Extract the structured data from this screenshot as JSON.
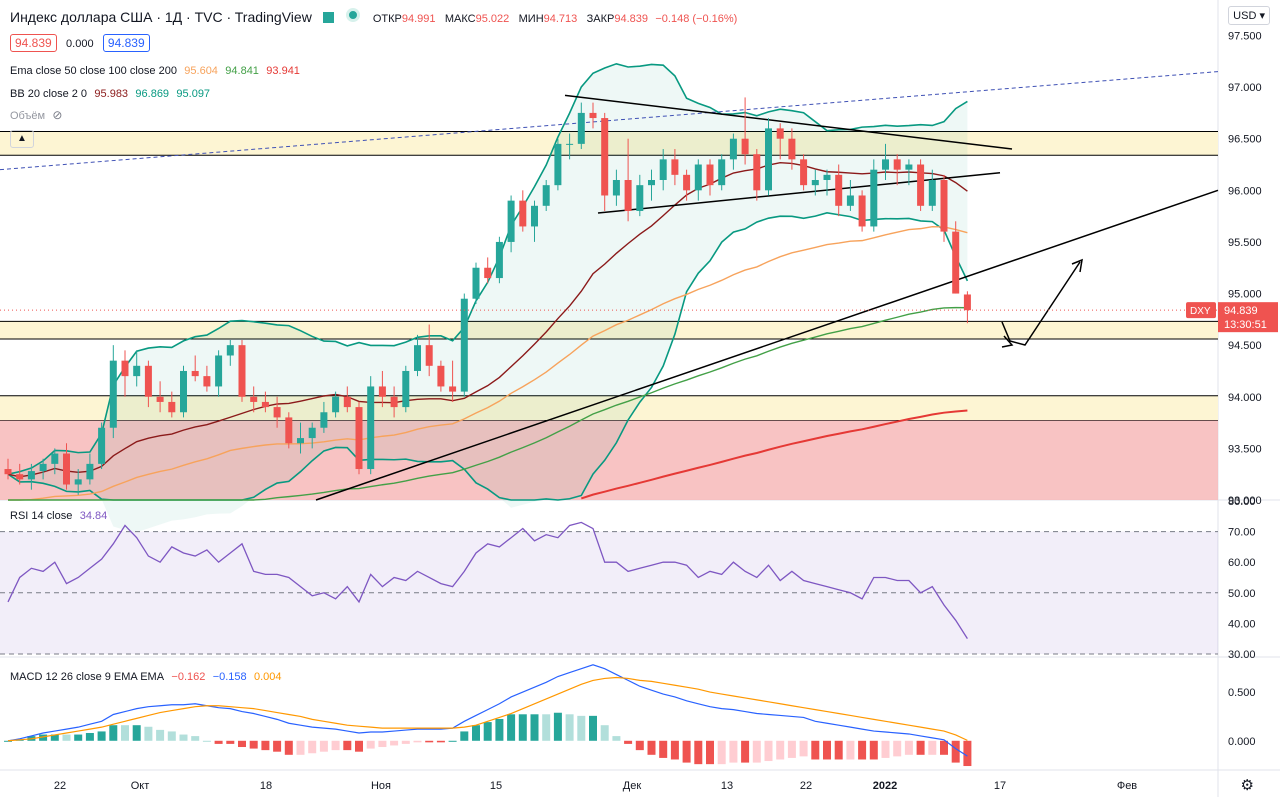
{
  "header": {
    "title": "Индекс доллара США · 1Д · TVC · TradingView",
    "otkr_label": "ОТКР",
    "otkr": "94.991",
    "maks_label": "МАКС",
    "maks": "95.022",
    "min_label": "МИН",
    "min": "94.713",
    "zakr_label": "ЗАКР",
    "zakr": "94.839",
    "change": "−0.148 (−0.16%)"
  },
  "quote": {
    "bid": "94.839",
    "spread": "0.000",
    "ask": "94.839"
  },
  "indicators": {
    "ema_label": "Ema close 50 close 100 close 200",
    "ema50": "95.604",
    "ema100": "94.841",
    "ema200": "93.941",
    "bb_label": "BB 20 close 2 0",
    "bb_basis": "95.983",
    "bb_upper": "96.869",
    "bb_lower": "95.097",
    "volume_label": "Объём",
    "rsi_label": "RSI 14 close",
    "rsi_value": "34.84",
    "macd_label": "MACD 12 26 close 9 EMA EMA",
    "macd_hist": "−0.162",
    "macd_line": "−0.158",
    "macd_signal": "0.004"
  },
  "scale": {
    "currency": "USD"
  },
  "price_tag": {
    "symbol": "DXY",
    "price": "94.839",
    "countdown": "13:30:51"
  },
  "colors": {
    "up": "#26a69a",
    "down": "#ef5350",
    "ema50": "#f7a35c",
    "ema100": "#43a047",
    "ema200": "#e53935",
    "bb_basis": "#8b1a1a",
    "bb_band": "#089981",
    "rsi": "#7e57c2",
    "macd": "#2962ff",
    "signal": "#ff9800",
    "zone_yellow": "#fdf5d3",
    "zone_red": "#f7b8b8"
  },
  "chart_data": {
    "type": "candlestick",
    "x_labels": [
      "22",
      "Окт",
      "18",
      "Ноя",
      "15",
      "Дек",
      "13",
      "22",
      "2022",
      "17",
      "Фев"
    ],
    "main_pane": {
      "y_ticks": [
        "97.500",
        "97.000",
        "96.500",
        "96.000",
        "95.500",
        "95.000",
        "94.500",
        "94.000",
        "93.500",
        "93.000"
      ],
      "ylim": [
        93.0,
        97.65
      ],
      "ohlc": [
        [
          93.3,
          93.4,
          93.2,
          93.25
        ],
        [
          93.25,
          93.35,
          93.15,
          93.2
        ],
        [
          93.2,
          93.35,
          93.1,
          93.28
        ],
        [
          93.28,
          93.4,
          93.2,
          93.35
        ],
        [
          93.35,
          93.5,
          93.25,
          93.45
        ],
        [
          93.45,
          93.55,
          93.1,
          93.15
        ],
        [
          93.15,
          93.3,
          93.05,
          93.2
        ],
        [
          93.2,
          93.45,
          93.15,
          93.35
        ],
        [
          93.35,
          93.75,
          93.3,
          93.7
        ],
        [
          93.7,
          94.5,
          93.6,
          94.35
        ],
        [
          94.35,
          94.45,
          94.0,
          94.2
        ],
        [
          94.2,
          94.45,
          94.1,
          94.3
        ],
        [
          94.3,
          94.35,
          93.9,
          94.0
        ],
        [
          94.0,
          94.15,
          93.85,
          93.95
        ],
        [
          93.95,
          94.05,
          93.8,
          93.85
        ],
        [
          93.85,
          94.3,
          93.8,
          94.25
        ],
        [
          94.25,
          94.4,
          94.15,
          94.2
        ],
        [
          94.2,
          94.3,
          94.05,
          94.1
        ],
        [
          94.1,
          94.45,
          94.0,
          94.4
        ],
        [
          94.4,
          94.55,
          94.3,
          94.5
        ],
        [
          94.5,
          94.55,
          93.95,
          94.0
        ],
        [
          94.0,
          94.1,
          93.85,
          93.95
        ],
        [
          93.95,
          94.05,
          93.85,
          93.9
        ],
        [
          93.9,
          94.0,
          93.7,
          93.8
        ],
        [
          93.8,
          93.85,
          93.5,
          93.55
        ],
        [
          93.55,
          93.75,
          93.45,
          93.6
        ],
        [
          93.6,
          93.75,
          93.5,
          93.7
        ],
        [
          93.7,
          93.95,
          93.65,
          93.85
        ],
        [
          93.85,
          94.05,
          93.8,
          94.0
        ],
        [
          94.0,
          94.1,
          93.85,
          93.9
        ],
        [
          93.9,
          93.95,
          93.25,
          93.3
        ],
        [
          93.3,
          94.2,
          93.25,
          94.1
        ],
        [
          94.1,
          94.25,
          93.9,
          94.0
        ],
        [
          94.0,
          94.1,
          93.8,
          93.9
        ],
        [
          93.9,
          94.3,
          93.85,
          94.25
        ],
        [
          94.25,
          94.6,
          94.2,
          94.5
        ],
        [
          94.5,
          94.7,
          94.2,
          94.3
        ],
        [
          94.3,
          94.35,
          94.05,
          94.1
        ],
        [
          94.1,
          94.35,
          93.95,
          94.05
        ],
        [
          94.05,
          95.0,
          94.0,
          94.95
        ],
        [
          94.95,
          95.3,
          94.9,
          95.25
        ],
        [
          95.25,
          95.35,
          95.1,
          95.15
        ],
        [
          95.15,
          95.55,
          95.1,
          95.5
        ],
        [
          95.5,
          95.95,
          95.4,
          95.9
        ],
        [
          95.9,
          96.0,
          95.6,
          95.65
        ],
        [
          95.65,
          95.9,
          95.5,
          95.85
        ],
        [
          95.85,
          96.1,
          95.8,
          96.05
        ],
        [
          96.05,
          96.5,
          96.0,
          96.45
        ],
        [
          96.45,
          96.55,
          96.3,
          96.45
        ],
        [
          96.45,
          96.85,
          96.4,
          96.75
        ],
        [
          96.75,
          96.85,
          96.6,
          96.7
        ],
        [
          96.7,
          96.75,
          95.8,
          95.95
        ],
        [
          95.95,
          96.2,
          95.85,
          96.1
        ],
        [
          96.1,
          96.5,
          95.7,
          95.8
        ],
        [
          95.8,
          96.15,
          95.75,
          96.05
        ],
        [
          96.05,
          96.2,
          95.9,
          96.1
        ],
        [
          96.1,
          96.4,
          96.0,
          96.3
        ],
        [
          96.3,
          96.4,
          96.05,
          96.15
        ],
        [
          96.15,
          96.2,
          95.9,
          96.0
        ],
        [
          96.0,
          96.3,
          95.9,
          96.25
        ],
        [
          96.25,
          96.3,
          95.95,
          96.05
        ],
        [
          96.05,
          96.35,
          96.0,
          96.3
        ],
        [
          96.3,
          96.55,
          96.2,
          96.5
        ],
        [
          96.5,
          96.9,
          96.25,
          96.35
        ],
        [
          96.35,
          96.4,
          95.9,
          96.0
        ],
        [
          96.0,
          96.7,
          95.95,
          96.6
        ],
        [
          96.6,
          96.65,
          96.3,
          96.5
        ],
        [
          96.5,
          96.6,
          96.2,
          96.3
        ],
        [
          96.3,
          96.35,
          96.0,
          96.05
        ],
        [
          96.05,
          96.2,
          95.95,
          96.1
        ],
        [
          96.1,
          96.2,
          95.95,
          96.15
        ],
        [
          96.15,
          96.25,
          95.75,
          95.85
        ],
        [
          95.85,
          96.1,
          95.8,
          95.95
        ],
        [
          95.95,
          96.0,
          95.6,
          95.65
        ],
        [
          95.65,
          96.3,
          95.6,
          96.2
        ],
        [
          96.2,
          96.45,
          96.1,
          96.3
        ],
        [
          96.3,
          96.35,
          96.05,
          96.2
        ],
        [
          96.2,
          96.3,
          96.05,
          96.25
        ],
        [
          96.25,
          96.3,
          95.8,
          95.85
        ],
        [
          95.85,
          96.2,
          95.8,
          96.1
        ],
        [
          96.1,
          96.15,
          95.5,
          95.6
        ],
        [
          95.6,
          95.7,
          95.0,
          95.0
        ],
        [
          94.991,
          95.022,
          94.713,
          94.839
        ]
      ],
      "horizontal_zones": [
        {
          "from": 96.34,
          "to": 96.57,
          "kind": "resistance"
        },
        {
          "from": 94.56,
          "to": 94.73,
          "kind": "support"
        },
        {
          "from": 93.77,
          "to": 94.01,
          "kind": "support"
        },
        {
          "from": 93.0,
          "to": 93.77,
          "kind": "red-zone"
        }
      ]
    },
    "rsi_pane": {
      "y_ticks": [
        "80.00",
        "70.00",
        "60.00",
        "50.00",
        "40.00",
        "30.00"
      ],
      "ylim": [
        29,
        80
      ],
      "levels": [
        70,
        50,
        30
      ],
      "values": [
        47,
        55,
        58,
        57,
        60,
        53,
        55,
        58,
        61,
        66,
        72,
        68,
        62,
        60,
        65,
        63,
        62,
        64,
        60,
        63,
        66,
        57,
        56,
        56,
        55,
        52,
        49,
        50,
        48,
        52,
        47,
        56,
        52,
        55,
        54,
        57,
        55,
        53,
        52,
        57,
        63,
        66,
        65,
        68,
        71,
        67,
        69,
        68,
        72,
        73,
        71,
        60,
        60,
        57,
        58,
        59,
        60,
        60,
        59,
        55,
        57,
        56,
        60,
        57,
        55,
        59,
        54,
        57,
        54,
        53,
        52,
        51,
        50,
        48,
        55,
        55,
        54,
        54,
        50,
        52,
        46,
        41,
        35
      ]
    },
    "macd_pane": {
      "y_ticks": [
        "0.500",
        "0.000"
      ],
      "ylim": [
        -0.3,
        0.85
      ],
      "macd": [
        0.0,
        0.02,
        0.05,
        0.08,
        0.1,
        0.12,
        0.14,
        0.17,
        0.2,
        0.27,
        0.3,
        0.33,
        0.35,
        0.36,
        0.37,
        0.37,
        0.38,
        0.36,
        0.34,
        0.33,
        0.3,
        0.28,
        0.25,
        0.22,
        0.18,
        0.16,
        0.14,
        0.13,
        0.12,
        0.1,
        0.08,
        0.09,
        0.09,
        0.1,
        0.11,
        0.12,
        0.12,
        0.12,
        0.13,
        0.2,
        0.26,
        0.32,
        0.38,
        0.45,
        0.5,
        0.55,
        0.6,
        0.66,
        0.7,
        0.74,
        0.78,
        0.74,
        0.68,
        0.62,
        0.56,
        0.52,
        0.48,
        0.45,
        0.41,
        0.38,
        0.35,
        0.33,
        0.32,
        0.3,
        0.28,
        0.27,
        0.26,
        0.25,
        0.24,
        0.2,
        0.18,
        0.16,
        0.14,
        0.12,
        0.1,
        0.09,
        0.08,
        0.07,
        0.05,
        0.03,
        0.01,
        -0.08,
        -0.158
      ],
      "signal": [
        0.0,
        0.01,
        0.02,
        0.04,
        0.06,
        0.08,
        0.1,
        0.12,
        0.14,
        0.17,
        0.2,
        0.23,
        0.26,
        0.29,
        0.31,
        0.33,
        0.35,
        0.36,
        0.36,
        0.35,
        0.34,
        0.33,
        0.31,
        0.29,
        0.27,
        0.25,
        0.22,
        0.2,
        0.18,
        0.16,
        0.15,
        0.14,
        0.13,
        0.13,
        0.13,
        0.13,
        0.13,
        0.13,
        0.13,
        0.14,
        0.16,
        0.2,
        0.24,
        0.28,
        0.33,
        0.38,
        0.43,
        0.48,
        0.53,
        0.58,
        0.62,
        0.64,
        0.65,
        0.64,
        0.62,
        0.61,
        0.59,
        0.57,
        0.55,
        0.53,
        0.5,
        0.48,
        0.46,
        0.44,
        0.42,
        0.4,
        0.38,
        0.36,
        0.34,
        0.32,
        0.3,
        0.28,
        0.26,
        0.24,
        0.22,
        0.2,
        0.18,
        0.16,
        0.14,
        0.12,
        0.1,
        0.06,
        0.004
      ]
    }
  }
}
